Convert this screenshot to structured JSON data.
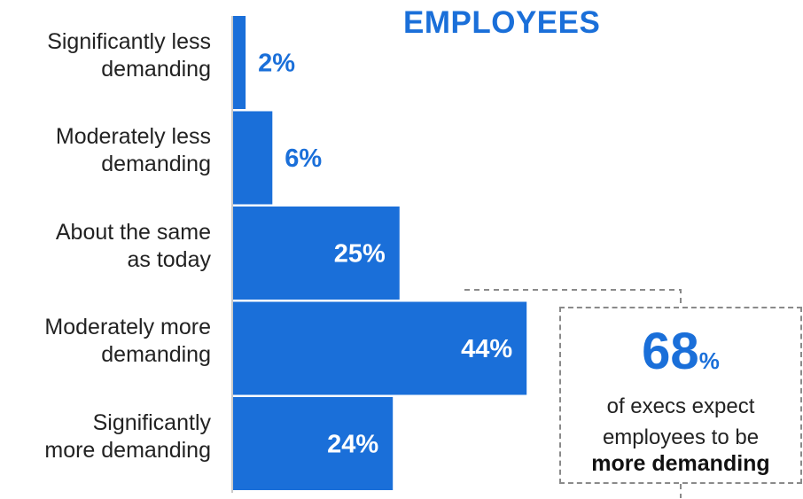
{
  "chart_data": {
    "type": "bar",
    "orientation": "horizontal",
    "title": "EMPLOYEES",
    "categories": [
      "Significantly less demanding",
      "Moderately less demanding",
      "About the same as today",
      "Moderately more demanding",
      "Significantly more demanding"
    ],
    "category_lines": [
      [
        "Significantly less",
        "demanding"
      ],
      [
        "Moderately less",
        "demanding"
      ],
      [
        "About the same",
        "as today"
      ],
      [
        "Moderately more",
        "demanding"
      ],
      [
        "Significantly",
        "more demanding"
      ]
    ],
    "values": [
      2,
      6,
      25,
      44,
      24
    ],
    "value_labels": [
      "2%",
      "6%",
      "25%",
      "44%",
      "24%"
    ],
    "xlim": [
      0,
      50
    ],
    "bar_color": "#1a6fd9"
  },
  "callout": {
    "number": "68",
    "unit": "%",
    "line1": "of execs expect",
    "line2": "employees to be",
    "bold_line": "more demanding"
  },
  "colors": {
    "accent": "#1a6fd9",
    "text": "#222222",
    "dash": "#8a8a8a"
  }
}
